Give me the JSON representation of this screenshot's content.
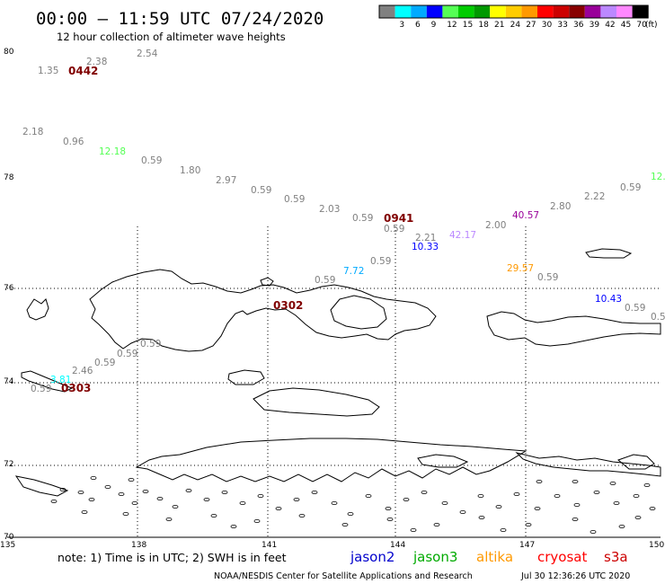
{
  "header": {
    "title": "00:00 – 11:59 UTC 07/24/2020",
    "subtitle": "12 hour collection of altimeter wave heights"
  },
  "scale": {
    "unit": "(ft)",
    "swatches": [
      {
        "color": "#808080",
        "label": ""
      },
      {
        "color": "#00ffff",
        "label": "3"
      },
      {
        "color": "#00aaff",
        "label": "6"
      },
      {
        "color": "#0000ff",
        "label": "9"
      },
      {
        "color": "#55ff55",
        "label": "12"
      },
      {
        "color": "#00cc00",
        "label": "15"
      },
      {
        "color": "#009900",
        "label": "18"
      },
      {
        "color": "#ffff00",
        "label": "21"
      },
      {
        "color": "#ffcc00",
        "label": "24"
      },
      {
        "color": "#ff9900",
        "label": "27"
      },
      {
        "color": "#ff0000",
        "label": "30"
      },
      {
        "color": "#cc0000",
        "label": "33"
      },
      {
        "color": "#880000",
        "label": "36"
      },
      {
        "color": "#990099",
        "label": "39"
      },
      {
        "color": "#bb88ff",
        "label": "42"
      },
      {
        "color": "#ff88ff",
        "label": "45"
      },
      {
        "color": "#000000",
        "label": "70"
      }
    ]
  },
  "axes": {
    "lat_ticks": [
      "80",
      "78",
      "76",
      "74",
      "72",
      "70"
    ],
    "lon_ticks": [
      "135",
      "138",
      "141",
      "144",
      "147",
      "150"
    ]
  },
  "time_labels": [
    "0442",
    "0941",
    "0302",
    "0303"
  ],
  "observations": [
    {
      "v": "1.35",
      "c": "#808080"
    },
    {
      "v": "2.38",
      "c": "#808080"
    },
    {
      "v": "2.54",
      "c": "#808080"
    },
    {
      "v": "2.18",
      "c": "#808080"
    },
    {
      "v": "0.96",
      "c": "#808080"
    },
    {
      "v": "12.18",
      "c": "#55ff55"
    },
    {
      "v": "0.59",
      "c": "#808080"
    },
    {
      "v": "1.80",
      "c": "#808080"
    },
    {
      "v": "2.97",
      "c": "#808080"
    },
    {
      "v": "0.59",
      "c": "#808080"
    },
    {
      "v": "0.59",
      "c": "#808080"
    },
    {
      "v": "2.03",
      "c": "#808080"
    },
    {
      "v": "0.59",
      "c": "#808080"
    },
    {
      "v": "0.59",
      "c": "#808080"
    },
    {
      "v": "2.21",
      "c": "#808080"
    },
    {
      "v": "10.33",
      "c": "#0000ff"
    },
    {
      "v": "42.17",
      "c": "#bb88ff"
    },
    {
      "v": "2.00",
      "c": "#808080"
    },
    {
      "v": "40.57",
      "c": "#990099"
    },
    {
      "v": "2.80",
      "c": "#808080"
    },
    {
      "v": "2.22",
      "c": "#808080"
    },
    {
      "v": "0.59",
      "c": "#808080"
    },
    {
      "v": "12.",
      "c": "#55ff55"
    },
    {
      "v": "0.59",
      "c": "#808080"
    },
    {
      "v": "7.72",
      "c": "#00aaff"
    },
    {
      "v": "29.57",
      "c": "#ff9900"
    },
    {
      "v": "0.59",
      "c": "#808080"
    },
    {
      "v": "0.59",
      "c": "#808080"
    },
    {
      "v": "10.43",
      "c": "#0000ff"
    },
    {
      "v": "0.59",
      "c": "#808080"
    },
    {
      "v": "0.5",
      "c": "#808080"
    },
    {
      "v": "0.59",
      "c": "#808080"
    },
    {
      "v": "0.59",
      "c": "#808080"
    },
    {
      "v": "0.59",
      "c": "#808080"
    },
    {
      "v": "2.46",
      "c": "#808080"
    },
    {
      "v": "3.81",
      "c": "#00ffff"
    },
    {
      "v": "0.59",
      "c": "#808080"
    }
  ],
  "footer": {
    "note": "note:  1) Time is in UTC;  2) SWH is in feet",
    "legend": [
      {
        "name": "jason2",
        "color": "#0000cc"
      },
      {
        "name": "jason3",
        "color": "#00aa00"
      },
      {
        "name": "altika",
        "color": "#ff9900"
      },
      {
        "name": "cryosat",
        "color": "#ff0000"
      },
      {
        "name": "s3a",
        "color": "#cc0000"
      }
    ],
    "credit": "NOAA/NESDIS Center for Satellite Applications and Research",
    "timestamp": "Jul 30 12:36:26 UTC 2020"
  }
}
